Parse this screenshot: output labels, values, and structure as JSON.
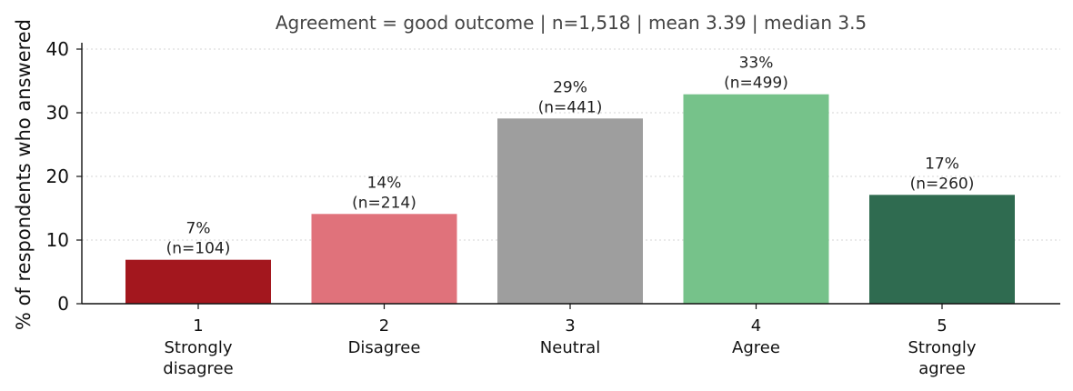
{
  "chart_data": {
    "type": "bar",
    "subtitle": "Agreement = good outcome   |   n=1,518   |   mean 3.39   |   median 3.5",
    "ylabel": "% of respondents who answered",
    "xlabel": "",
    "ylim": [
      0,
      41
    ],
    "yticks": [
      0,
      10,
      20,
      30,
      40
    ],
    "grid": "horizontal dotted",
    "categories": [
      {
        "code": "1",
        "label": [
          "Strongly",
          "disagree"
        ]
      },
      {
        "code": "2",
        "label": [
          "Disagree"
        ]
      },
      {
        "code": "3",
        "label": [
          "Neutral"
        ]
      },
      {
        "code": "4",
        "label": [
          "Agree"
        ]
      },
      {
        "code": "5",
        "label": [
          "Strongly",
          "agree"
        ]
      }
    ],
    "values": [
      6.9,
      14.1,
      29.1,
      32.9,
      17.1
    ],
    "data_labels": [
      [
        "7%",
        "(n=104)"
      ],
      [
        "14%",
        "(n=214)"
      ],
      [
        "29%",
        "(n=441)"
      ],
      [
        "33%",
        "(n=499)"
      ],
      [
        "17%",
        "(n=260)"
      ]
    ],
    "colors": [
      "#a3171e",
      "#e0727b",
      "#9e9e9e",
      "#76c28a",
      "#2f6b50"
    ]
  }
}
